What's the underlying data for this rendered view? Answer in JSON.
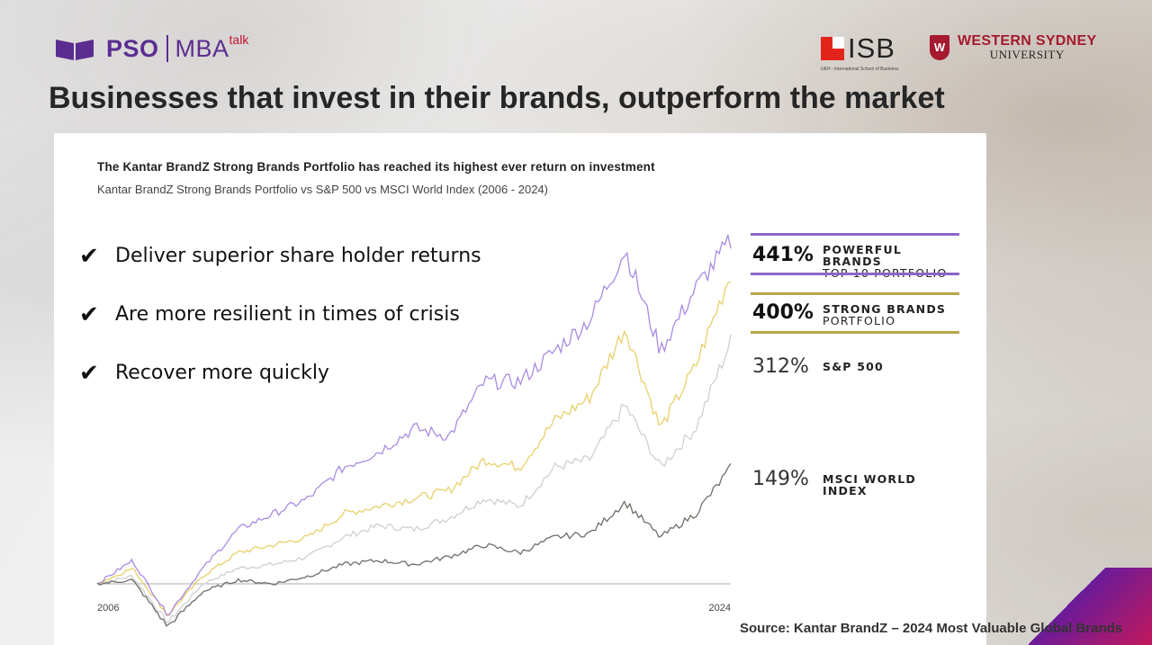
{
  "header": {
    "logo_pso": "PSO",
    "logo_mba": "MBA",
    "logo_talk": "talk",
    "isb_text": "ISB",
    "isb_sub": "UEH - International School of Business",
    "wsu_line1": "WESTERN SYDNEY",
    "wsu_line2": "UNIVERSITY",
    "wsu_mark": "W"
  },
  "slide": {
    "title": "Businesses that invest in their brands, outperform the market",
    "source": "Source: Kantar BrandZ – 2024 Most Valuable Global Brands"
  },
  "bullets": [
    {
      "check": "✔",
      "text": "Deliver superior share holder returns"
    },
    {
      "check": "✔",
      "text": "Are more resilient in times of crisis"
    },
    {
      "check": "✔",
      "text": "Recover more quickly"
    }
  ],
  "legend": {
    "powerful": {
      "pct": "441%",
      "line1": "POWERFUL BRANDS",
      "line2": "TOP 10 PORTFOLIO"
    },
    "strong": {
      "pct": "400%",
      "line1": "STRONG BRANDS",
      "line2": "PORTFOLIO"
    },
    "sp": {
      "pct": "312%",
      "line1": "S&P 500"
    },
    "msci": {
      "pct": "149%",
      "line1": "MSCI WORLD INDEX"
    }
  },
  "colors": {
    "powerful": "#a98be0",
    "strong": "#e8cf6a",
    "sp": "#cfcfcf",
    "msci": "#6f6d66",
    "legend_purple": "#8a66c8",
    "legend_gold": "#b9a64a"
  },
  "chart_data": {
    "type": "line",
    "title": "The Kantar BrandZ Strong Brands Portfolio has reached its highest ever return on investment",
    "subtitle": "Kantar BrandZ Strong Brands Portfolio vs S&P 500 vs MSCI World Index (2006 - 2024)",
    "x_start_label": "2006",
    "x_end_label": "2024",
    "x": [
      2006,
      2007,
      2008,
      2009,
      2010,
      2011,
      2012,
      2013,
      2014,
      2015,
      2016,
      2017,
      2018,
      2019,
      2020,
      2021,
      2022,
      2023,
      2024
    ],
    "series": [
      {
        "name": "POWERFUL BRANDS TOP 10 PORTFOLIO",
        "values": [
          0,
          30,
          -40,
          20,
          70,
          90,
          110,
          150,
          170,
          200,
          190,
          260,
          260,
          300,
          340,
          430,
          300,
          380,
          441
        ]
      },
      {
        "name": "STRONG BRANDS PORTFOLIO",
        "values": [
          0,
          20,
          -40,
          10,
          40,
          50,
          60,
          90,
          100,
          110,
          120,
          160,
          150,
          210,
          240,
          330,
          200,
          280,
          400
        ]
      },
      {
        "name": "S&P 500",
        "values": [
          0,
          10,
          -50,
          0,
          20,
          25,
          35,
          60,
          75,
          70,
          85,
          110,
          100,
          150,
          160,
          230,
          150,
          200,
          312
        ]
      },
      {
        "name": "MSCI WORLD INDEX",
        "values": [
          0,
          5,
          -55,
          -10,
          5,
          0,
          10,
          25,
          30,
          25,
          35,
          50,
          40,
          60,
          65,
          105,
          60,
          90,
          149
        ]
      }
    ]
  }
}
